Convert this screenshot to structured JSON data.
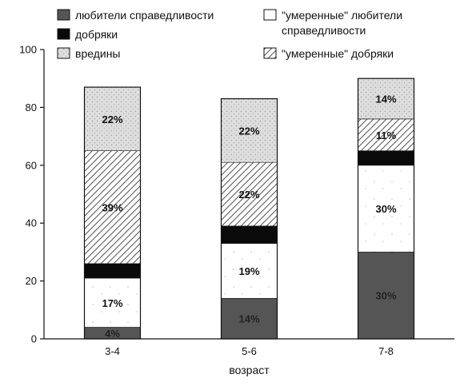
{
  "chart_data": {
    "type": "bar",
    "stacked": true,
    "categories": [
      "3-4",
      "5-6",
      "7-8"
    ],
    "xlabel": "возраст",
    "ylabel": "",
    "ylim": [
      0,
      100
    ],
    "yticks": [
      0,
      20,
      40,
      60,
      80,
      100
    ],
    "grid": false,
    "legend_position": "top",
    "series": [
      {
        "name": "любители справедливости",
        "values": [
          4,
          14,
          30
        ],
        "labels": [
          "4%",
          "14%",
          "30%"
        ],
        "color": "#555555",
        "pattern": "solid"
      },
      {
        "name": "\"умеренные\" любители справедливости",
        "values": [
          17,
          19,
          30
        ],
        "labels": [
          "17%",
          "19%",
          "30%"
        ],
        "color": "#ffffff",
        "pattern": "dots"
      },
      {
        "name": "добряки",
        "values": [
          5,
          6,
          5
        ],
        "labels": [
          "",
          "",
          ""
        ],
        "color": "#0a0a0a",
        "pattern": "solid"
      },
      {
        "name": "\"умеренные\" добряки",
        "values": [
          39,
          22,
          11
        ],
        "labels": [
          "39%",
          "22%",
          "11%"
        ],
        "color": "#ffffff",
        "pattern": "hatch"
      },
      {
        "name": "вредины",
        "values": [
          22,
          22,
          14
        ],
        "labels": [
          "22%",
          "22%",
          "14%"
        ],
        "color": "#dcdcdc",
        "pattern": "speckle"
      }
    ],
    "legend_order": [
      0,
      2,
      4,
      1,
      3
    ]
  }
}
